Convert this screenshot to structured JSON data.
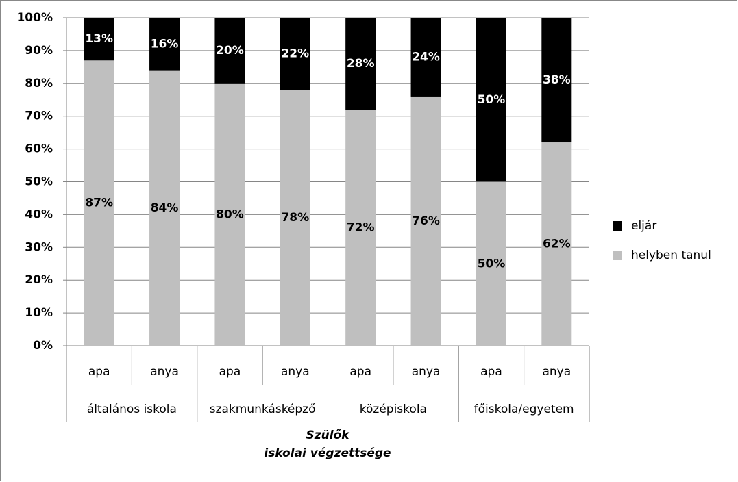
{
  "chart_data": {
    "type": "stacked-bar",
    "categories": [
      "apa",
      "anya",
      "apa",
      "anya",
      "apa",
      "anya",
      "apa",
      "anya"
    ],
    "groups": [
      "általános iskola",
      "szakmunkásképző",
      "középiskola",
      "főiskola/egyetem"
    ],
    "x_label": [
      "Szülők",
      "iskolai végzettsége"
    ],
    "series": [
      {
        "name": "helyben tanul",
        "color": "#bfbfbf",
        "label_color": "#000000",
        "values": [
          87,
          84,
          80,
          78,
          72,
          76,
          50,
          62
        ],
        "value_labels": [
          "87%",
          "84%",
          "80%",
          "78%",
          "72%",
          "76%",
          "50%",
          "62%"
        ]
      },
      {
        "name": "eljár",
        "color": "#000000",
        "label_color": "#ffffff",
        "values": [
          13,
          16,
          20,
          22,
          28,
          24,
          50,
          38
        ],
        "value_labels": [
          "13%",
          "16%",
          "20%",
          "22%",
          "28%",
          "24%",
          "50%",
          "38%"
        ]
      }
    ],
    "ylim": [
      0,
      100
    ],
    "yticks": [
      {
        "value": 0,
        "label": "0%"
      },
      {
        "value": 10,
        "label": "10%"
      },
      {
        "value": 20,
        "label": "20%"
      },
      {
        "value": 30,
        "label": "30%"
      },
      {
        "value": 40,
        "label": "40%"
      },
      {
        "value": 50,
        "label": "50%"
      },
      {
        "value": 60,
        "label": "60%"
      },
      {
        "value": 70,
        "label": "70%"
      },
      {
        "value": 80,
        "label": "80%"
      },
      {
        "value": 90,
        "label": "90%"
      },
      {
        "value": 100,
        "label": "100%"
      }
    ],
    "grid": true,
    "legend": "right"
  }
}
